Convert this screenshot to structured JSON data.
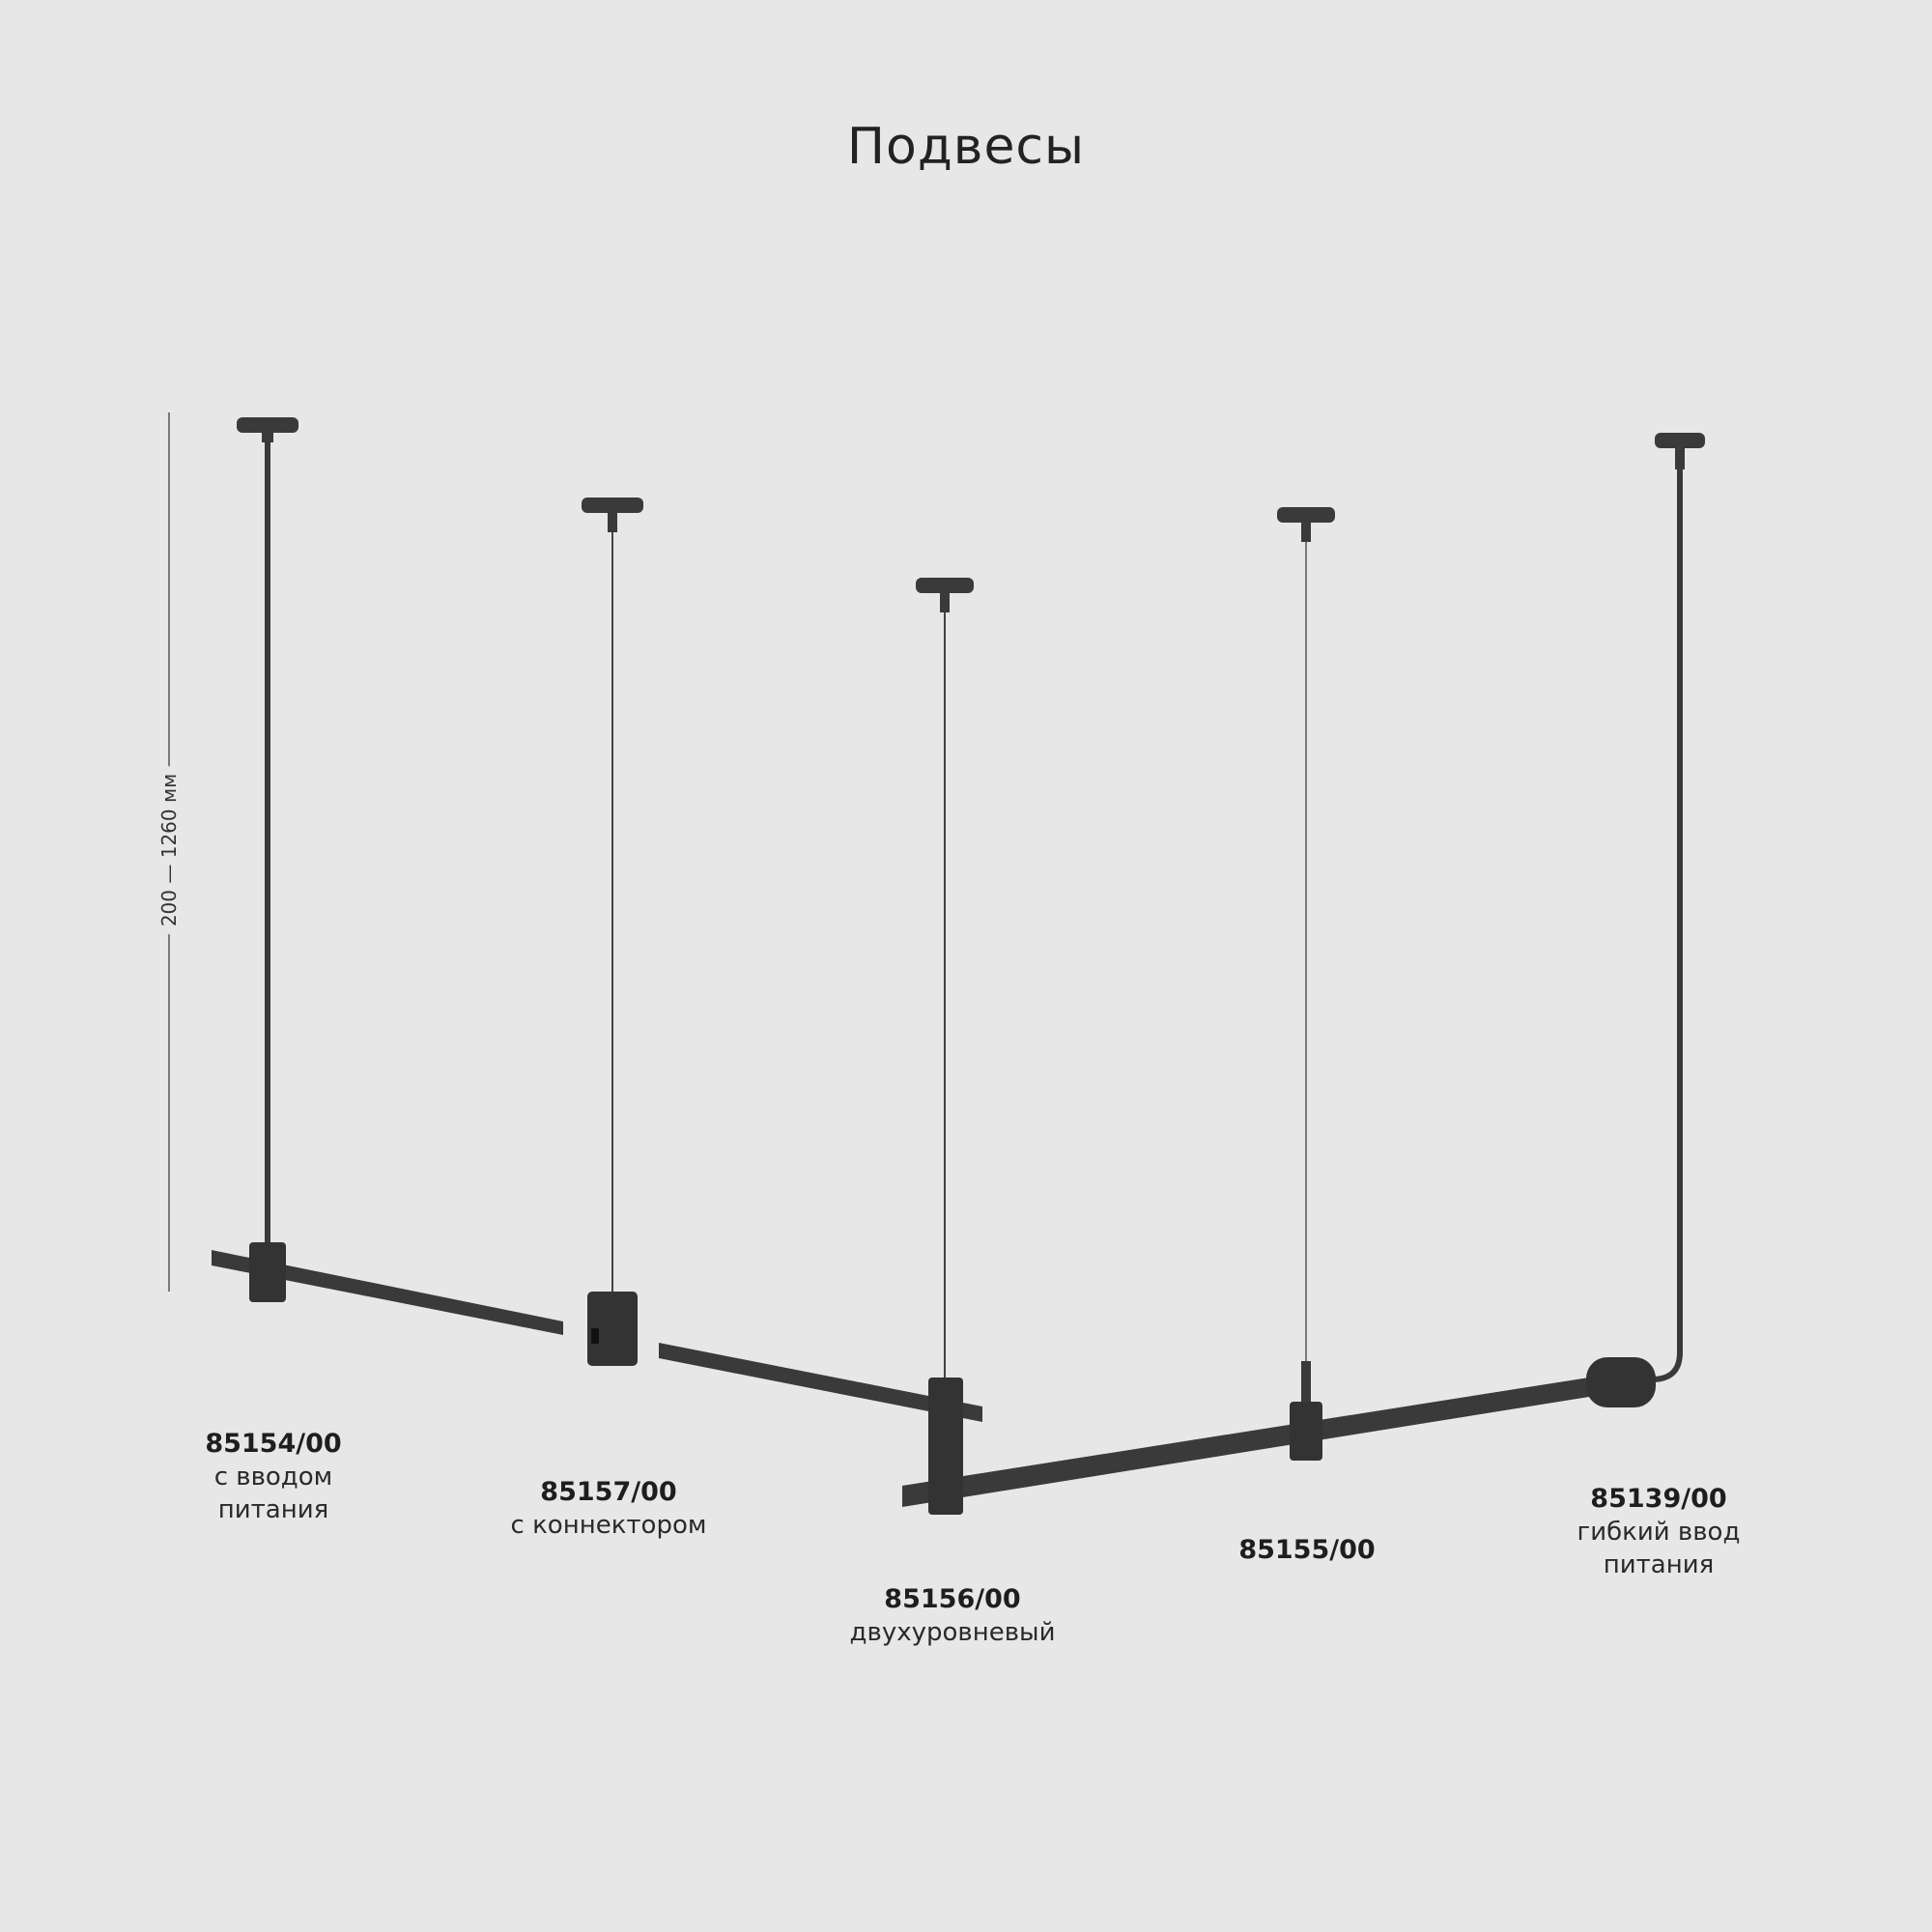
{
  "title": "Подвесы",
  "dimension": "200 — 1260 мм",
  "colors": {
    "background": "#e7e7e7",
    "fixture": "#3a3a3a",
    "text": "#1e1e1e"
  },
  "products": [
    {
      "code": "85154/00",
      "desc_lines": [
        "с вводом",
        "питания"
      ]
    },
    {
      "code": "85157/00",
      "desc_lines": [
        "с коннектором"
      ]
    },
    {
      "code": "85156/00",
      "desc_lines": [
        "двухуровневый"
      ]
    },
    {
      "code": "85155/00",
      "desc_lines": []
    },
    {
      "code": "85139/00",
      "desc_lines": [
        "гибкий ввод",
        "питания"
      ]
    }
  ]
}
